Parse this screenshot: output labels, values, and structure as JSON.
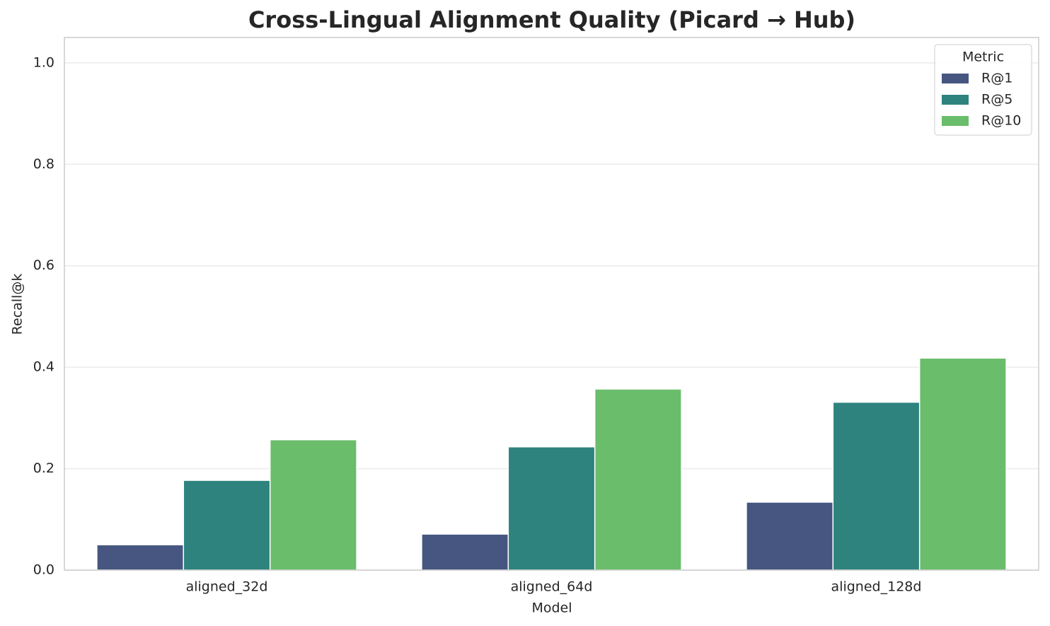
{
  "chart_data": {
    "type": "bar",
    "title": "Cross-Lingual Alignment Quality (Picard → Hub)",
    "x_label": "Model",
    "y_label": "Recall@k",
    "categories": [
      "aligned_32d",
      "aligned_64d",
      "aligned_128d"
    ],
    "series": [
      {
        "name": "R@1",
        "color": "#465681",
        "values": [
          0.05,
          0.071,
          0.134
        ]
      },
      {
        "name": "R@5",
        "color": "#2e837e",
        "values": [
          0.177,
          0.243,
          0.331
        ]
      },
      {
        "name": "R@10",
        "color": "#6abd6b",
        "values": [
          0.257,
          0.357,
          0.418
        ]
      }
    ],
    "legend_title": "Metric",
    "legend_position": "upper right",
    "ylim": [
      0,
      1.05
    ],
    "yticks": [
      {
        "value": 0,
        "label": "0.0"
      },
      0.2,
      0.4,
      0.6,
      0.8,
      {
        "value": 1,
        "label": "1.0"
      }
    ],
    "grid": true
  }
}
